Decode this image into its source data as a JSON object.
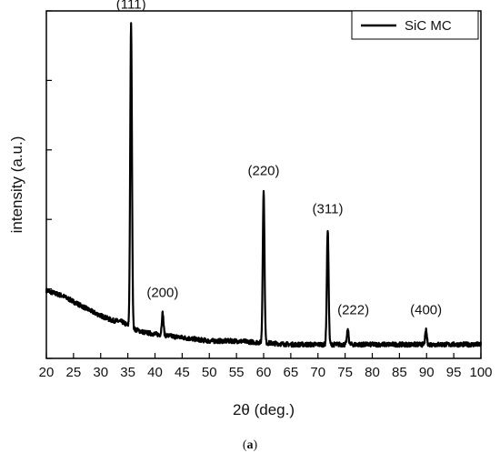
{
  "chart_data": {
    "type": "line",
    "xlabel": "2θ (deg.)",
    "ylabel": "intensity (a.u.)",
    "xlim": [
      20,
      100
    ],
    "x_ticks": [
      "20",
      "25",
      "30",
      "35",
      "40",
      "45",
      "50",
      "55",
      "60",
      "65",
      "70",
      "75",
      "80",
      "85",
      "90",
      "95",
      "100"
    ],
    "ylim": [
      0,
      100
    ],
    "y_tick_labels_shown": false,
    "legend": {
      "entries": [
        "SiC MC"
      ],
      "placement": "top-right"
    },
    "series": [
      {
        "name": "SiC MC",
        "color": "#000000",
        "background": [
          [
            20,
            19.5
          ],
          [
            23,
            18
          ],
          [
            26,
            15.5
          ],
          [
            29,
            13
          ],
          [
            32,
            11
          ],
          [
            34,
            10.5
          ],
          [
            36,
            8.5
          ],
          [
            38,
            7.5
          ],
          [
            40,
            7
          ],
          [
            45,
            6
          ],
          [
            50,
            5
          ],
          [
            55,
            5
          ],
          [
            60,
            4.5
          ],
          [
            65,
            4
          ],
          [
            70,
            4
          ],
          [
            75,
            4
          ],
          [
            80,
            4
          ],
          [
            85,
            4
          ],
          [
            90,
            4
          ],
          [
            95,
            4
          ],
          [
            100,
            4
          ]
        ],
        "peaks": [
          {
            "x": 35.6,
            "y": 96
          },
          {
            "x": 41.4,
            "y": 13
          },
          {
            "x": 60.0,
            "y": 48
          },
          {
            "x": 71.8,
            "y": 37
          },
          {
            "x": 75.5,
            "y": 8
          },
          {
            "x": 89.9,
            "y": 8
          }
        ]
      }
    ],
    "annotations": [
      {
        "text": "(111)",
        "x": 35.6
      },
      {
        "text": "(200)",
        "x": 41.4
      },
      {
        "text": "(220)",
        "x": 60.0
      },
      {
        "text": "(311)",
        "x": 71.8
      },
      {
        "text": "(222)",
        "x": 75.5
      },
      {
        "text": "(400)",
        "x": 89.9
      }
    ]
  },
  "caption": {
    "open": "(",
    "label": "a",
    "close": ")"
  }
}
